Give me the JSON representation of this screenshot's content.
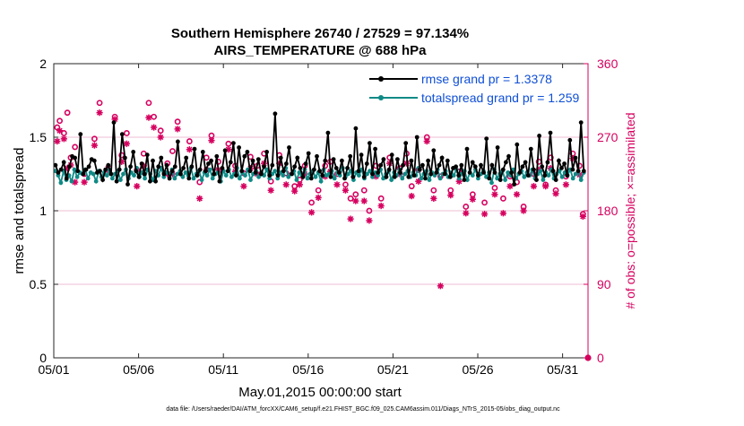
{
  "chart_data": {
    "type": "line",
    "title_line1": "Southern Hemisphere 26740 / 27529 = 97.134%",
    "title_line2": "AIRS_TEMPERATURE @ 688 hPa",
    "xlabel": "May.01,2015 00:00:00 start",
    "ylabel_left": "rmse and totalspread",
    "ylabel_right": "# of obs: o=possible; ×=assimilated",
    "footer": "data file: /Users/raeder/DAI/ATM_forcXX/CAM6_setup/f.e21.FHIST_BGC.f09_025.CAM6assim.011/Diags_NTrS_2015-05/obs_diag_output.nc",
    "xlim": [
      0,
      31.5
    ],
    "ylim_left": [
      0,
      2
    ],
    "ylim_right": [
      0,
      360
    ],
    "x_ticks": [
      0,
      5,
      10,
      15,
      20,
      25,
      30
    ],
    "x_tick_labels": [
      "05/01",
      "05/06",
      "05/11",
      "05/16",
      "05/21",
      "05/26",
      "05/31"
    ],
    "y_left_ticks": [
      0,
      0.5,
      1,
      1.5,
      2
    ],
    "y_left_tick_labels": [
      "0",
      "0.5",
      "1",
      "1.5",
      "2"
    ],
    "y_right_ticks": [
      0,
      90,
      180,
      270,
      360
    ],
    "y_right_tick_labels": [
      "0",
      "90",
      "180",
      "270",
      "360"
    ],
    "legend_position": "top-right",
    "series": [
      {
        "name": "rmse grand pr = 1.3378",
        "color": "#000000",
        "axis": "left",
        "values": [
          1.31,
          1.26,
          1.28,
          1.33,
          1.22,
          1.3,
          1.37,
          1.36,
          1.27,
          1.52,
          1.25,
          1.28,
          1.3,
          1.35,
          1.34,
          1.26,
          1.27,
          1.21,
          1.28,
          1.31,
          1.25,
          1.6,
          1.2,
          1.28,
          1.52,
          1.36,
          1.18,
          1.3,
          1.4,
          1.27,
          1.23,
          1.32,
          1.25,
          1.38,
          1.2,
          1.34,
          1.2,
          1.3,
          1.36,
          1.25,
          1.31,
          1.22,
          1.27,
          1.3,
          1.47,
          1.25,
          1.29,
          1.36,
          1.22,
          1.3,
          1.42,
          1.24,
          1.28,
          1.4,
          1.27,
          1.32,
          1.34,
          1.25,
          1.37,
          1.2,
          1.29,
          1.41,
          1.27,
          1.33,
          1.46,
          1.24,
          1.43,
          1.27,
          1.37,
          1.4,
          1.27,
          1.34,
          1.26,
          1.35,
          1.25,
          1.3,
          1.4,
          1.24,
          1.31,
          1.66,
          1.24,
          1.36,
          1.27,
          1.32,
          1.43,
          1.25,
          1.3,
          1.36,
          1.29,
          1.23,
          1.32,
          1.39,
          1.22,
          1.28,
          1.37,
          1.27,
          1.24,
          1.34,
          1.53,
          1.23,
          1.35,
          1.29,
          1.26,
          1.34,
          1.22,
          1.29,
          1.37,
          1.23,
          1.56,
          1.27,
          1.38,
          1.23,
          1.32,
          1.46,
          1.25,
          1.42,
          1.26,
          1.31,
          1.35,
          1.23,
          1.28,
          1.38,
          1.23,
          1.35,
          1.26,
          1.31,
          1.46,
          1.23,
          1.34,
          1.24,
          1.5,
          1.28,
          1.31,
          1.22,
          1.34,
          1.25,
          1.41,
          1.26,
          1.31,
          1.36,
          1.25,
          1.34,
          1.23,
          1.29,
          1.3,
          1.24,
          1.31,
          1.21,
          1.42,
          1.26,
          1.33,
          1.3,
          1.24,
          1.31,
          1.26,
          1.49,
          1.22,
          1.31,
          1.26,
          1.43,
          1.21,
          1.28,
          1.33,
          1.37,
          1.26,
          1.18,
          1.45,
          1.26,
          1.3,
          1.33,
          1.24,
          1.42,
          1.28,
          1.21,
          1.51,
          1.3,
          1.24,
          1.33,
          1.53,
          1.27,
          1.21,
          1.34,
          1.29,
          1.32,
          1.24,
          1.48,
          1.28,
          1.36,
          1.27,
          1.6,
          1.27
        ]
      },
      {
        "name": "totalspread grand pr = 1.259",
        "color": "#0f8a86",
        "axis": "left",
        "values": [
          1.27,
          1.24,
          1.19,
          1.27,
          1.21,
          1.24,
          1.2,
          1.28,
          1.23,
          1.26,
          1.25,
          1.28,
          1.22,
          1.26,
          1.25,
          1.2,
          1.27,
          1.23,
          1.26,
          1.24,
          1.28,
          1.22,
          1.25,
          1.27,
          1.21,
          1.25,
          1.28,
          1.22,
          1.26,
          1.24,
          1.29,
          1.23,
          1.26,
          1.22,
          1.28,
          1.25,
          1.21,
          1.27,
          1.24,
          1.29,
          1.23,
          1.26,
          1.25,
          1.28,
          1.22,
          1.25,
          1.27,
          1.23,
          1.26,
          1.24,
          1.29,
          1.22,
          1.25,
          1.27,
          1.21,
          1.26,
          1.24,
          1.28,
          1.22,
          1.25,
          1.26,
          1.2,
          1.27,
          1.24,
          1.28,
          1.23,
          1.25,
          1.29,
          1.22,
          1.26,
          1.24,
          1.28,
          1.21,
          1.25,
          1.27,
          1.23,
          1.26,
          1.24,
          1.28,
          1.22,
          1.25,
          1.27,
          1.22,
          1.26,
          1.24,
          1.29,
          1.23,
          1.25,
          1.27,
          1.21,
          1.26,
          1.24,
          1.28,
          1.22,
          1.25,
          1.27,
          1.23,
          1.26,
          1.2,
          1.28,
          1.24,
          1.25,
          1.27,
          1.22,
          1.26,
          1.24,
          1.29,
          1.23,
          1.25,
          1.27,
          1.21,
          1.26,
          1.24,
          1.28,
          1.22,
          1.25,
          1.27,
          1.23,
          1.26,
          1.24,
          1.28,
          1.22,
          1.25,
          1.27,
          1.21,
          1.26,
          1.24,
          1.28,
          1.22,
          1.25,
          1.27,
          1.23,
          1.26,
          1.24,
          1.29,
          1.22,
          1.25,
          1.27,
          1.21,
          1.26,
          1.24,
          1.28,
          1.22,
          1.25,
          1.27,
          1.23,
          1.26,
          1.24,
          1.28,
          1.22,
          1.25,
          1.27,
          1.21,
          1.26,
          1.24,
          1.28,
          1.22,
          1.25,
          1.27,
          1.23,
          1.26,
          1.19,
          1.28,
          1.22,
          1.25,
          1.27,
          1.21,
          1.26,
          1.24,
          1.28,
          1.22,
          1.25,
          1.27,
          1.23,
          1.26,
          1.24,
          1.28,
          1.22,
          1.25,
          1.27,
          1.21,
          1.26,
          1.24,
          1.28,
          1.22,
          1.25,
          1.27,
          1.23,
          1.26,
          1.24,
          1.28,
          1.22,
          1.25,
          1.27,
          1.21,
          1.26
        ]
      }
    ],
    "obs_possible": {
      "name": "possible",
      "marker": "o",
      "color": "#d6005f",
      "axis": "right",
      "points": [
        [
          0.2,
          282
        ],
        [
          0.35,
          290
        ],
        [
          0.6,
          275
        ],
        [
          0.8,
          300
        ],
        [
          1.0,
          245
        ],
        [
          1.25,
          258
        ],
        [
          1.8,
          225
        ],
        [
          2.4,
          268
        ],
        [
          2.7,
          312
        ],
        [
          3.2,
          230
        ],
        [
          3.6,
          295
        ],
        [
          4.0,
          248
        ],
        [
          4.3,
          275
        ],
        [
          4.9,
          230
        ],
        [
          5.3,
          250
        ],
        [
          5.6,
          312
        ],
        [
          5.9,
          295
        ],
        [
          6.3,
          278
        ],
        [
          6.7,
          238
        ],
        [
          7.0,
          253
        ],
        [
          7.3,
          289
        ],
        [
          8.0,
          265
        ],
        [
          8.6,
          215
        ],
        [
          9.0,
          245
        ],
        [
          9.3,
          272
        ],
        [
          9.7,
          240
        ],
        [
          10.3,
          262
        ],
        [
          10.7,
          235
        ],
        [
          11.2,
          226
        ],
        [
          11.6,
          246
        ],
        [
          12.0,
          235
        ],
        [
          12.4,
          250
        ],
        [
          12.8,
          216
        ],
        [
          13.3,
          248
        ],
        [
          13.7,
          226
        ],
        [
          14.2,
          210
        ],
        [
          14.5,
          218
        ],
        [
          14.8,
          235
        ],
        [
          15.2,
          190
        ],
        [
          15.6,
          205
        ],
        [
          16.0,
          235
        ],
        [
          16.3,
          240
        ],
        [
          16.7,
          225
        ],
        [
          17.2,
          212
        ],
        [
          17.5,
          195
        ],
        [
          17.8,
          200
        ],
        [
          18.3,
          205
        ],
        [
          18.6,
          180
        ],
        [
          19.0,
          235
        ],
        [
          19.3,
          195
        ],
        [
          19.8,
          245
        ],
        [
          20.4,
          232
        ],
        [
          20.8,
          250
        ],
        [
          21.1,
          210
        ],
        [
          21.5,
          230
        ],
        [
          22.0,
          270
        ],
        [
          22.4,
          205
        ],
        [
          22.8,
          222
        ],
        [
          23.4,
          205
        ],
        [
          23.9,
          228
        ],
        [
          24.3,
          185
        ],
        [
          24.7,
          200
        ],
        [
          25.4,
          190
        ],
        [
          26.0,
          208
        ],
        [
          26.5,
          195
        ],
        [
          26.9,
          222
        ],
        [
          27.3,
          215
        ],
        [
          27.7,
          185
        ],
        [
          28.3,
          225
        ],
        [
          28.6,
          240
        ],
        [
          29.0,
          212
        ],
        [
          29.3,
          245
        ],
        [
          29.6,
          205
        ],
        [
          30.2,
          222
        ],
        [
          30.6,
          250
        ],
        [
          31.0,
          235
        ],
        [
          31.2,
          176
        ]
      ]
    },
    "obs_assimilated": {
      "name": "assimilated",
      "marker": "x",
      "color": "#d6005f",
      "axis": "right",
      "points": [
        [
          0.2,
          265
        ],
        [
          0.35,
          278
        ],
        [
          0.6,
          268
        ],
        [
          0.8,
          232
        ],
        [
          1.0,
          236
        ],
        [
          1.25,
          215
        ],
        [
          1.8,
          215
        ],
        [
          2.4,
          260
        ],
        [
          2.7,
          300
        ],
        [
          3.2,
          232
        ],
        [
          3.6,
          292
        ],
        [
          4.0,
          240
        ],
        [
          4.3,
          262
        ],
        [
          4.9,
          210
        ],
        [
          5.3,
          235
        ],
        [
          5.6,
          294
        ],
        [
          5.9,
          282
        ],
        [
          6.3,
          270
        ],
        [
          6.7,
          225
        ],
        [
          7.0,
          225
        ],
        [
          7.3,
          280
        ],
        [
          8.0,
          255
        ],
        [
          8.6,
          195
        ],
        [
          9.0,
          230
        ],
        [
          9.3,
          266
        ],
        [
          9.7,
          230
        ],
        [
          10.3,
          255
        ],
        [
          10.7,
          228
        ],
        [
          11.2,
          210
        ],
        [
          11.6,
          232
        ],
        [
          12.0,
          225
        ],
        [
          12.4,
          238
        ],
        [
          12.8,
          205
        ],
        [
          13.3,
          238
        ],
        [
          13.7,
          212
        ],
        [
          14.2,
          204
        ],
        [
          14.5,
          212
        ],
        [
          14.8,
          225
        ],
        [
          15.2,
          178
        ],
        [
          15.6,
          196
        ],
        [
          16.0,
          222
        ],
        [
          16.3,
          228
        ],
        [
          16.7,
          212
        ],
        [
          17.2,
          205
        ],
        [
          17.5,
          170
        ],
        [
          17.8,
          192
        ],
        [
          18.3,
          192
        ],
        [
          18.6,
          168
        ],
        [
          19.0,
          222
        ],
        [
          19.3,
          186
        ],
        [
          19.8,
          238
        ],
        [
          20.4,
          225
        ],
        [
          20.8,
          238
        ],
        [
          21.1,
          198
        ],
        [
          21.5,
          216
        ],
        [
          22.0,
          265
        ],
        [
          22.4,
          195
        ],
        [
          22.8,
          88
        ],
        [
          23.4,
          199
        ],
        [
          23.9,
          216
        ],
        [
          24.3,
          177
        ],
        [
          24.7,
          194
        ],
        [
          25.4,
          176
        ],
        [
          26.0,
          200
        ],
        [
          26.5,
          177
        ],
        [
          26.9,
          210
        ],
        [
          27.3,
          200
        ],
        [
          27.7,
          180
        ],
        [
          28.3,
          210
        ],
        [
          28.6,
          230
        ],
        [
          29.0,
          210
        ],
        [
          29.3,
          232
        ],
        [
          29.6,
          201
        ],
        [
          30.2,
          212
        ],
        [
          30.6,
          244
        ],
        [
          31.0,
          224
        ],
        [
          31.2,
          173
        ]
      ]
    }
  }
}
